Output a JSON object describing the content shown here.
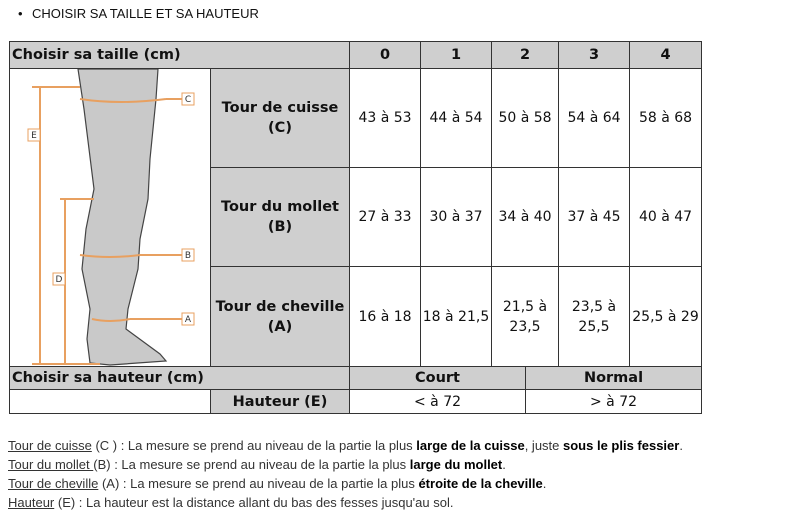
{
  "bullet": "CHOISIR SA TAILLE ET SA HAUTEUR",
  "size_table": {
    "header": "Choisir sa taille (cm)",
    "sizes": [
      "0",
      "1",
      "2",
      "3",
      "4"
    ],
    "rows": [
      {
        "label": "Tour de cuisse (C)",
        "values": [
          "43 à 53",
          "44 à 54",
          "50 à 58",
          "54 à 64",
          "58 à 68"
        ]
      },
      {
        "label": "Tour du mollet (B)",
        "values": [
          "27 à 33",
          "30 à 37",
          "34 à 40",
          "37 à 45",
          "40 à 47"
        ]
      },
      {
        "label": "Tour de cheville (A)",
        "values": [
          "16 à 18",
          "18 à 21,5",
          "21,5 à 23,5",
          "23,5 à 25,5",
          "25,5 à 29"
        ]
      }
    ],
    "diagram_labels": [
      "C",
      "B",
      "A",
      "E",
      "D"
    ]
  },
  "height_table": {
    "header": "Choisir sa hauteur (cm)",
    "columns": [
      "Court",
      "Normal"
    ],
    "row_label": "Hauteur (E)",
    "values": [
      "< à 72",
      "> à 72"
    ]
  },
  "notes": [
    {
      "term": "Tour de cuisse",
      "rest1": " (C ) : La mesure se prend au niveau de la partie la plus ",
      "bold1": "large de la cuisse",
      "rest2": ", juste ",
      "bold2": "sous le plis fessier",
      "rest3": "."
    },
    {
      "term": "Tour du mollet ",
      "rest1": "(B) : La mesure se prend au niveau de la partie la plus ",
      "bold1": "large du mollet",
      "rest2": "."
    },
    {
      "term": "Tour de cheville",
      "rest1": " (A) : La mesure se prend au niveau de la partie la plus ",
      "bold1": "étroite de la cheville",
      "rest2": "."
    },
    {
      "term": "Hauteur",
      "rest1": " (E) : La hauteur est la distance allant du bas des fesses jusqu'au sol."
    }
  ],
  "colors": {
    "header_bg": "#cfcfcf",
    "measure_lines": "#e8a060"
  }
}
